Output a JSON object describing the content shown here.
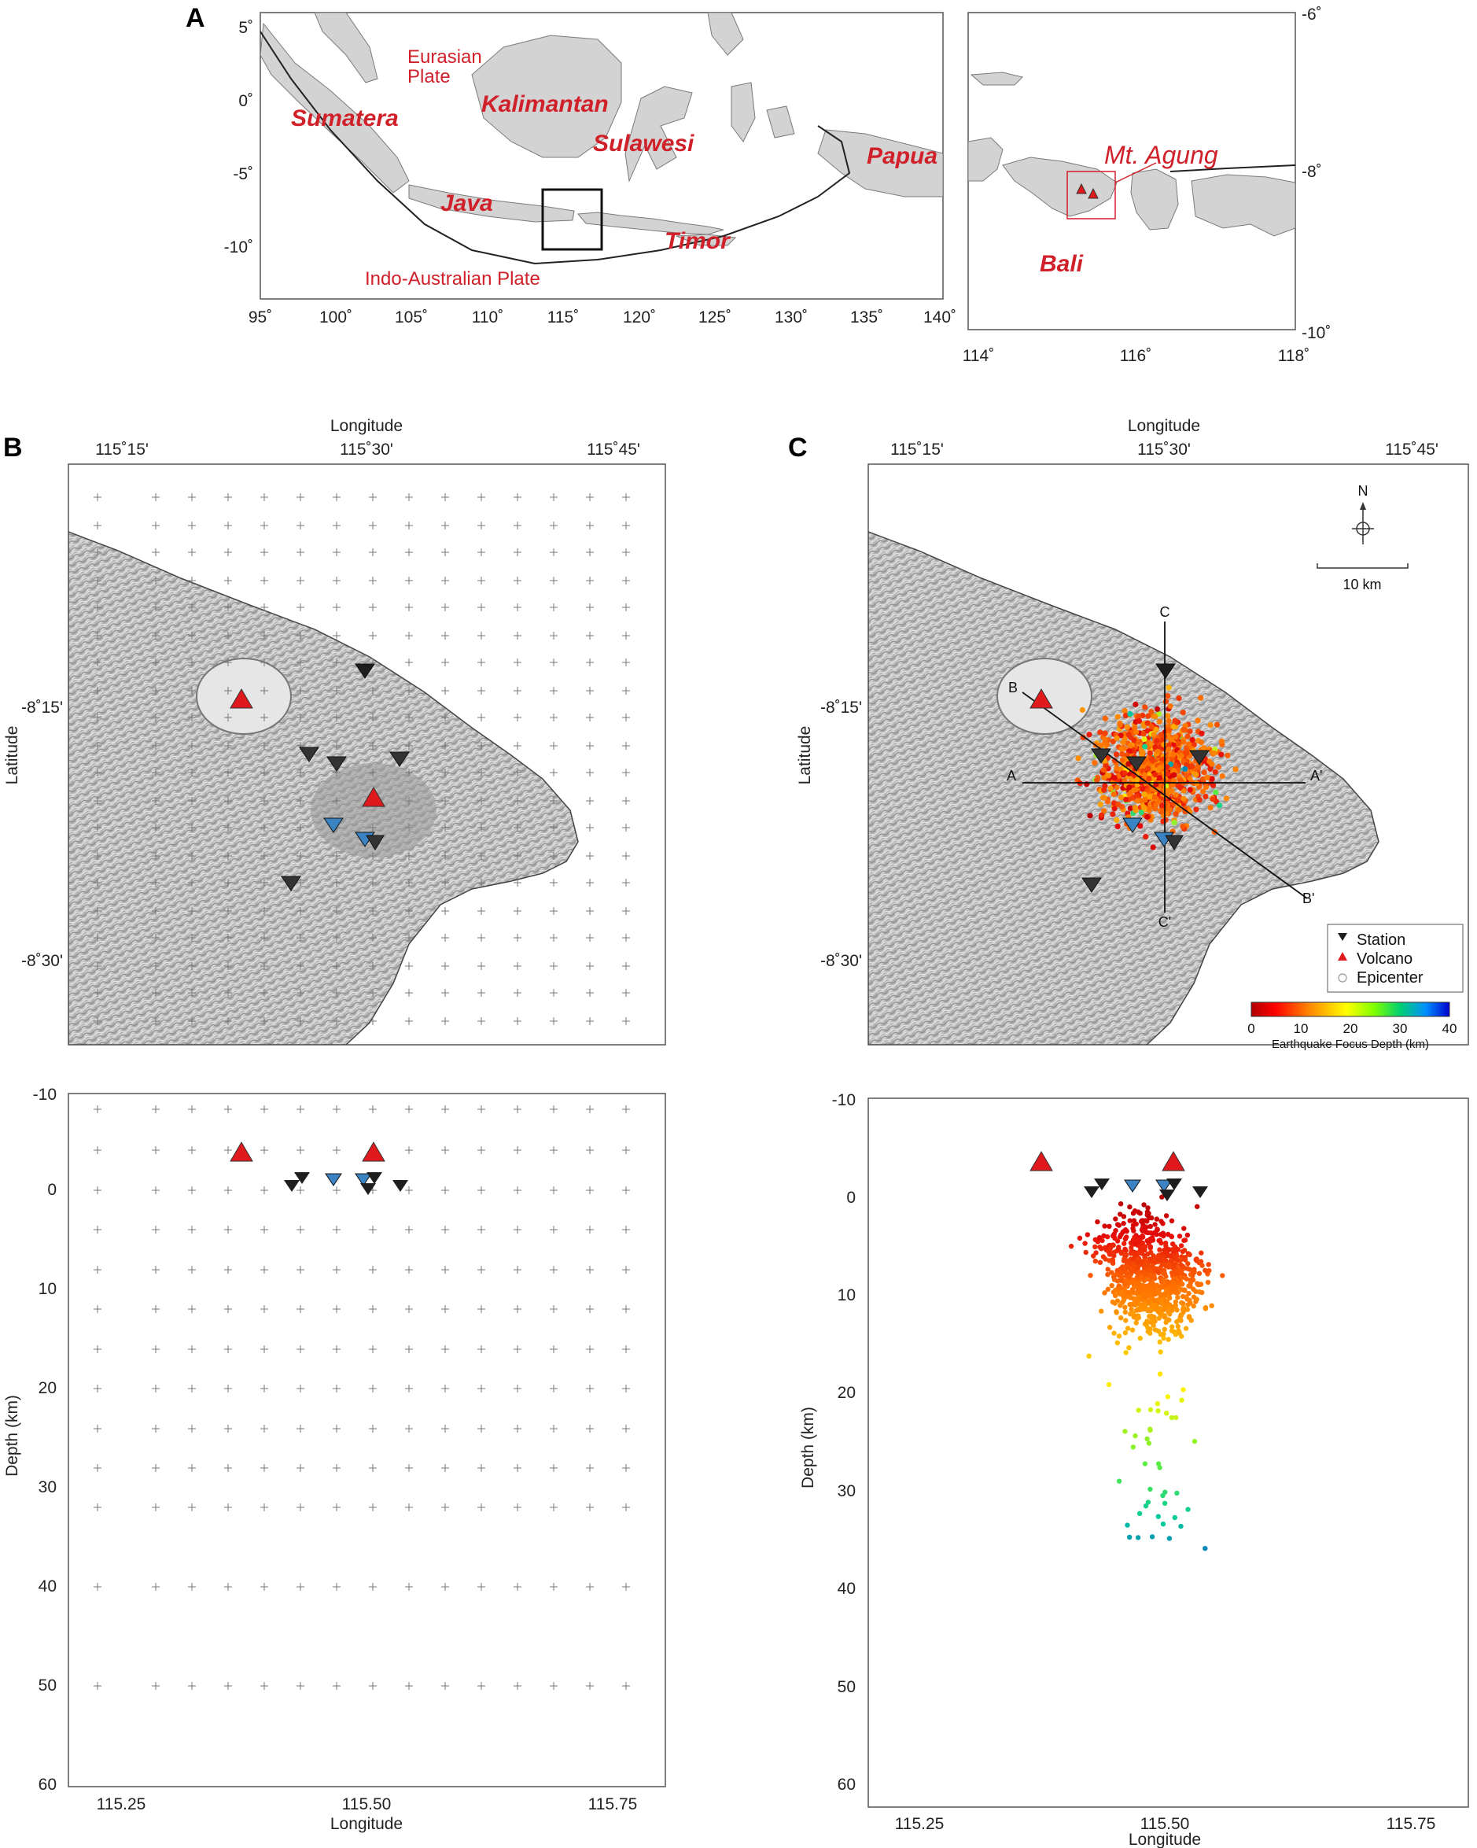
{
  "figure": {
    "panel_a": {
      "letter": "A",
      "x_ticks": [
        "95˚",
        "100˚",
        "105˚",
        "110˚",
        "115˚",
        "120˚",
        "125˚",
        "130˚",
        "135˚",
        "140˚"
      ],
      "y_ticks": [
        "5˚",
        "0˚",
        "-5˚",
        "-10˚"
      ],
      "islands": {
        "sumatera": "Sumatera",
        "kalimantan": "Kalimantan",
        "sulawesi": "Sulawesi",
        "papua": "Papua",
        "java": "Java",
        "timor": "Timor"
      },
      "plates": {
        "eurasian_line1": "Eurasian",
        "eurasian_line2": "Plate",
        "indo_australian": "Indo-Australian Plate"
      }
    },
    "panel_a_inset": {
      "x_ticks": [
        "114˚",
        "116˚",
        "118˚"
      ],
      "y_ticks": [
        "-6˚",
        "-8˚",
        "-10˚"
      ],
      "volcano_label": "Mt. Agung",
      "island_label": "Bali"
    },
    "panel_b": {
      "letter": "B",
      "map_xlabel": "Longitude",
      "map_ylabel": "Latitude",
      "lon_ticks": [
        "115˚15'",
        "115˚30'",
        "115˚45'"
      ],
      "lat_ticks": [
        "-8˚15'",
        "-8˚30'"
      ],
      "depth_ylabel": "Depth (km)",
      "depth_xlabel": "Longitude",
      "depth_ticks": [
        "-10",
        "0",
        "10",
        "20",
        "30",
        "40",
        "50",
        "60"
      ],
      "lon_decimal_ticks": [
        "115.25",
        "115.50",
        "115.75"
      ]
    },
    "panel_c": {
      "letter": "C",
      "map_xlabel": "Longitude",
      "map_ylabel": "Latitude",
      "lon_ticks": [
        "115˚15'",
        "115˚30'",
        "115˚45'"
      ],
      "lat_ticks": [
        "-8˚15'",
        "-8˚30'"
      ],
      "north": "N",
      "scale": "10 km",
      "section_labels": {
        "a": "A",
        "a_prime": "A'",
        "b": "B",
        "b_prime": "B'",
        "c": "C",
        "c_prime": "C'"
      },
      "legend": {
        "station": "Station",
        "volcano": "Volcano",
        "epicenter": "Epicenter"
      },
      "colorbar": {
        "title": "Earthquake Focus Depth (km)",
        "ticks": [
          "0",
          "10",
          "20",
          "30",
          "40"
        ]
      },
      "depth_ylabel": "Depth (km)",
      "depth_xlabel": "Longitude",
      "depth_ticks": [
        "-10",
        "0",
        "10",
        "20",
        "30",
        "40",
        "50",
        "60"
      ],
      "lon_decimal_ticks": [
        "115.25",
        "115.50",
        "115.75"
      ]
    },
    "colors": {
      "volcano": "#e0191c",
      "station": "#1e1e1e",
      "station_alt": "#3a84c3",
      "land": "#d3d3d3",
      "annotation": "#d0202a"
    }
  }
}
